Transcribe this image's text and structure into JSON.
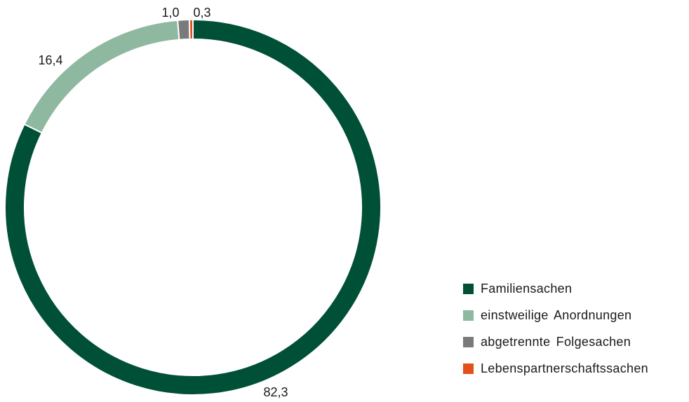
{
  "chart_data": {
    "type": "pie",
    "variant": "donut",
    "categories": [
      "Familiensachen",
      "einstweilige Anordnungen",
      "abgetrennte Folgesachen",
      "Lebenspartnerschaftssachen"
    ],
    "values": [
      82.3,
      16.4,
      1.0,
      0.3
    ],
    "value_labels": [
      "82,3",
      "16,4",
      "1,0",
      "0,3"
    ],
    "colors": [
      "#005038",
      "#8fb8a0",
      "#7a7a7a",
      "#e2501c"
    ],
    "legend_position": "bottom-right",
    "start_angle": "top",
    "direction": "clockwise"
  }
}
